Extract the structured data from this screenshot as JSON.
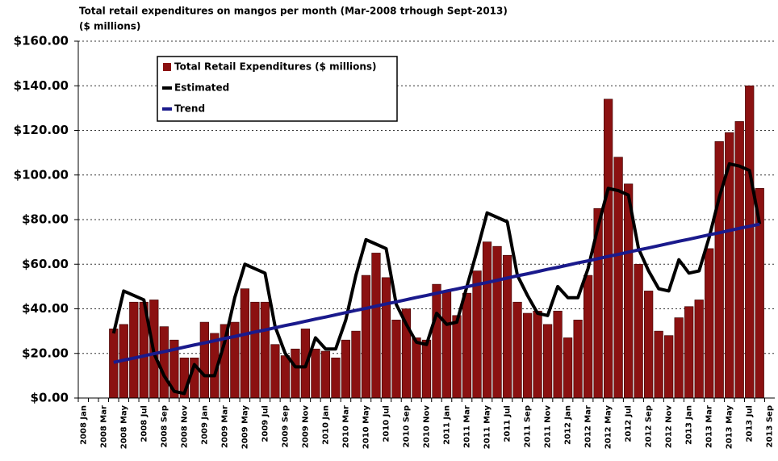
{
  "chart_data": {
    "type": "bar",
    "title": "Total retail expenditures on mangos per month  (Mar-2008 trhough Sept-2013)",
    "subtitle": "($ millions)",
    "categories": [
      "2008 Jan",
      null,
      "2008 Mar",
      null,
      "2008 May",
      null,
      "2008 Jul",
      null,
      "2008 Sep",
      null,
      "2008 Nov",
      null,
      "2009 Jan",
      null,
      "2009 Mar",
      null,
      "2009 May",
      null,
      "2009 Jul",
      null,
      "2009 Sep",
      null,
      "2009 Nov",
      null,
      "2010 Jan",
      null,
      "2010 Mar",
      null,
      "2010 May",
      null,
      "2010 Jul",
      null,
      "2010 Sep",
      null,
      "2010 Nov",
      null,
      "2011 Jan",
      null,
      "2011 Mar",
      null,
      "2011 May",
      null,
      "2011 Jul",
      null,
      "2011 Sep",
      null,
      "2011 Nov",
      null,
      "2012 Jan",
      null,
      "2012 Mar",
      null,
      "2012 May",
      null,
      "2012 Jul",
      null,
      "2012 Sep",
      null,
      "2012 Nov",
      null,
      "2013 Jan",
      null,
      "2013 Mar",
      null,
      "2013 May",
      null,
      "2013 Jul",
      null,
      "2013 Sep"
    ],
    "series": [
      {
        "name": "Total Retail Expenditures ($ millions)",
        "type": "bar",
        "color": "#8b1111",
        "values": [
          null,
          null,
          null,
          31,
          33,
          43,
          43,
          44,
          32,
          26,
          18,
          18,
          34,
          29,
          33,
          34,
          49,
          43,
          43,
          24,
          19,
          22,
          31,
          22,
          21,
          18,
          26,
          30,
          55,
          65,
          54,
          35,
          40,
          27,
          26,
          51,
          48,
          37,
          47,
          57,
          70,
          68,
          64,
          43,
          38,
          39,
          33,
          39,
          27,
          35,
          55,
          85,
          134,
          108,
          96,
          60,
          48,
          30,
          28,
          36,
          41,
          44,
          67,
          115,
          119,
          124,
          140,
          94,
          null
        ]
      },
      {
        "name": "Estimated",
        "type": "line",
        "color": "#000000",
        "values": [
          null,
          null,
          null,
          29,
          48,
          46,
          44,
          20,
          10,
          3,
          2,
          15,
          10,
          10,
          25,
          45,
          60,
          58,
          56,
          32,
          20,
          14,
          14,
          27,
          22,
          22,
          35,
          55,
          71,
          69,
          67,
          42,
          33,
          25,
          24,
          38,
          33,
          34,
          50,
          66,
          83,
          81,
          79,
          55,
          46,
          38,
          37,
          50,
          45,
          45,
          58,
          77,
          94,
          93,
          91,
          67,
          57,
          49,
          48,
          62,
          56,
          57,
          72,
          90,
          105,
          104,
          102,
          78,
          null
        ]
      },
      {
        "name": "Trend",
        "type": "line",
        "color": "#1a1a8c",
        "values": [
          null,
          null,
          null,
          16.0,
          17.0,
          17.9,
          18.9,
          19.9,
          20.8,
          21.8,
          22.8,
          23.8,
          24.7,
          25.7,
          26.7,
          27.6,
          28.6,
          29.6,
          30.5,
          31.5,
          32.5,
          33.4,
          34.4,
          35.4,
          36.3,
          37.3,
          38.3,
          39.3,
          40.2,
          41.2,
          42.2,
          43.1,
          44.1,
          45.1,
          46.0,
          47.0,
          48.0,
          48.9,
          49.9,
          50.9,
          51.8,
          52.8,
          53.8,
          54.8,
          55.7,
          56.7,
          57.7,
          58.6,
          59.6,
          60.6,
          61.5,
          62.5,
          63.5,
          64.4,
          65.4,
          66.4,
          67.3,
          68.3,
          69.3,
          70.3,
          71.2,
          72.2,
          73.2,
          74.1,
          75.1,
          76.1,
          77.0,
          78.0,
          null
        ]
      }
    ],
    "ylim": [
      0,
      160
    ],
    "yticks": [
      {
        "value": 0,
        "label": "$0.00"
      },
      {
        "value": 20,
        "label": "$20.00"
      },
      {
        "value": 40,
        "label": "$40.00"
      },
      {
        "value": 60,
        "label": "$60.00"
      },
      {
        "value": 80,
        "label": "$80.00"
      },
      {
        "value": 100,
        "label": "$100.00"
      },
      {
        "value": 120,
        "label": "$120.00"
      },
      {
        "value": 140,
        "label": "$140.00"
      },
      {
        "value": 160,
        "label": "$160.00"
      }
    ],
    "grid": true,
    "legend": "upper left"
  }
}
